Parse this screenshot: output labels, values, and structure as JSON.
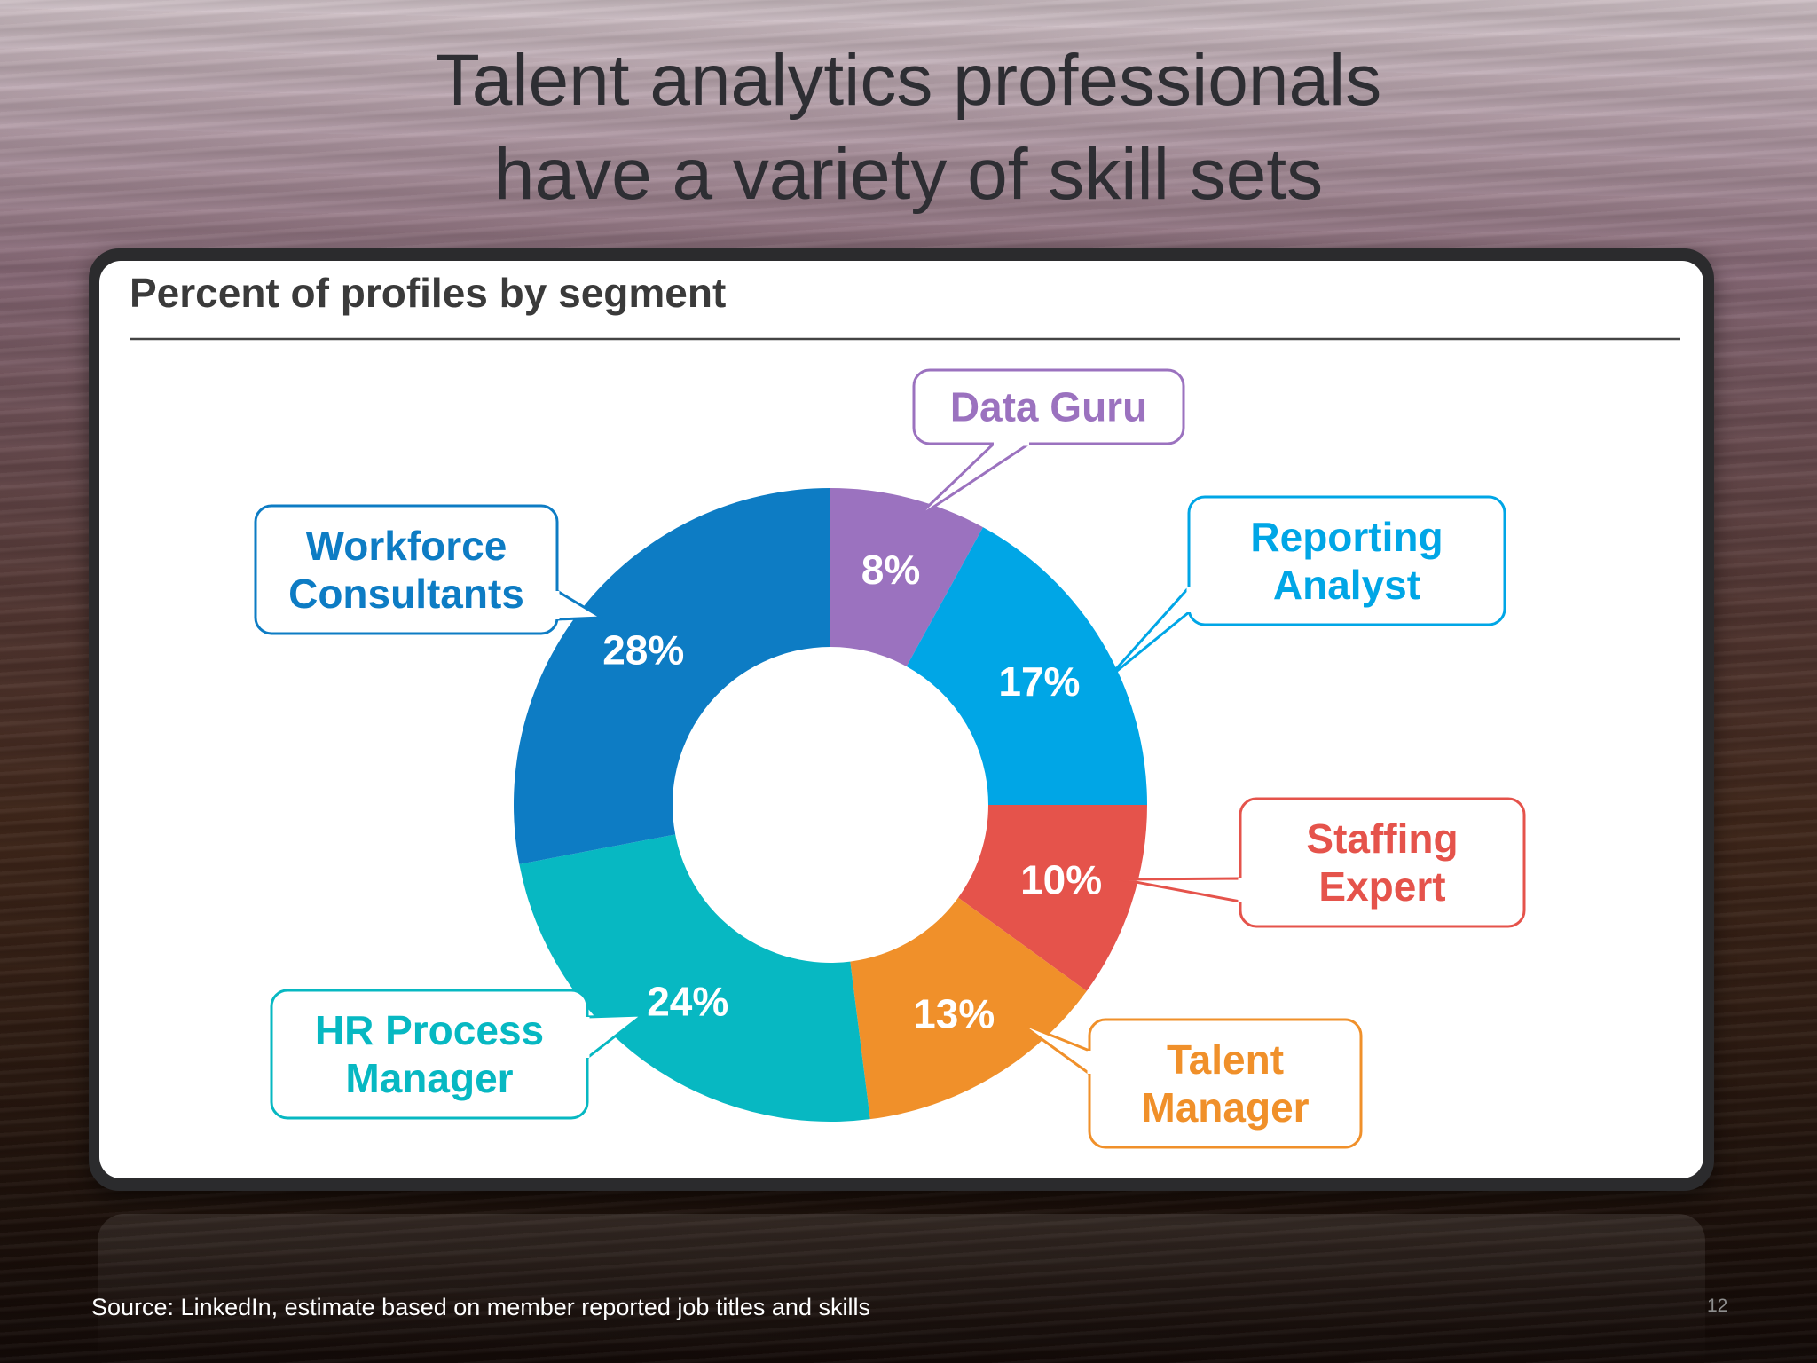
{
  "slide": {
    "title_line1": "Talent analytics professionals",
    "title_line2": "have a variety of skill sets",
    "source": "Source: LinkedIn, estimate based on member reported job titles and skills",
    "page_number": "12"
  },
  "chart_data": {
    "type": "pie",
    "title": "Percent of profiles by segment",
    "donut": true,
    "segments": [
      {
        "label_lines": [
          "Data Guru"
        ],
        "value": 8,
        "value_label": "8%",
        "color": "#9b72bf"
      },
      {
        "label_lines": [
          "Reporting",
          "Analyst"
        ],
        "value": 17,
        "value_label": "17%",
        "color": "#00a6e6"
      },
      {
        "label_lines": [
          "Staffing",
          "Expert"
        ],
        "value": 10,
        "value_label": "10%",
        "color": "#e5534b"
      },
      {
        "label_lines": [
          "Talent",
          "Manager"
        ],
        "value": 13,
        "value_label": "13%",
        "color": "#f0902a"
      },
      {
        "label_lines": [
          "HR Process",
          "Manager"
        ],
        "value": 24,
        "value_label": "24%",
        "color": "#07b8c2"
      },
      {
        "label_lines": [
          "Workforce",
          "Consultants"
        ],
        "value": 28,
        "value_label": "28%",
        "color": "#0d7cc4"
      }
    ]
  }
}
